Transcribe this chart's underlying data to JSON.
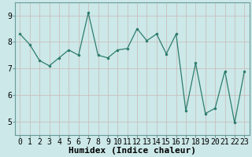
{
  "x": [
    0,
    1,
    2,
    3,
    4,
    5,
    6,
    7,
    8,
    9,
    10,
    11,
    12,
    13,
    14,
    15,
    16,
    17,
    18,
    19,
    20,
    21,
    22,
    23
  ],
  "y": [
    8.3,
    7.9,
    7.3,
    7.1,
    7.4,
    7.7,
    7.5,
    9.1,
    7.5,
    7.4,
    7.7,
    7.75,
    8.5,
    8.05,
    8.3,
    7.55,
    8.3,
    5.4,
    7.2,
    5.3,
    5.5,
    6.9,
    4.95,
    6.9
  ],
  "xlabel": "Humidex (Indice chaleur)",
  "ylim": [
    4.5,
    9.5
  ],
  "xlim": [
    -0.5,
    23.5
  ],
  "yticks": [
    5,
    6,
    7,
    8,
    9
  ],
  "xticks": [
    0,
    1,
    2,
    3,
    4,
    5,
    6,
    7,
    8,
    9,
    10,
    11,
    12,
    13,
    14,
    15,
    16,
    17,
    18,
    19,
    20,
    21,
    22,
    23
  ],
  "line_color": "#2e7d6e",
  "marker_color": "#2e7d6e",
  "bg_color": "#cce8e8",
  "grid_color": "#c8b8b8",
  "spine_color": "#6a9a9a",
  "xlabel_fontsize": 8,
  "tick_fontsize": 7,
  "xlabel_fontweight": "bold"
}
